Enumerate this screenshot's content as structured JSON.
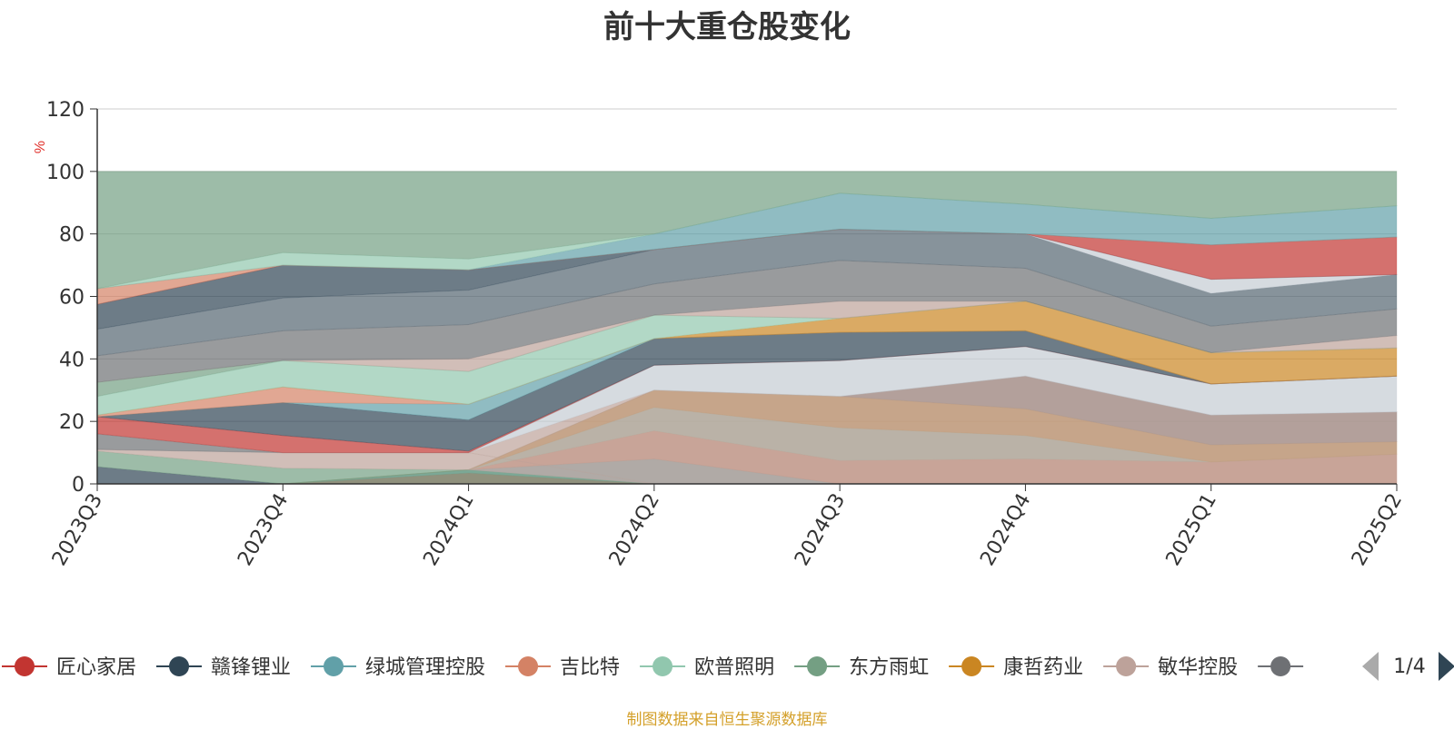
{
  "chart_data": {
    "type": "area",
    "title": "前十大重仓股变化",
    "ylabel": "%",
    "ylim": [
      0,
      120
    ],
    "yticks": [
      0,
      20,
      40,
      60,
      80,
      100,
      120
    ],
    "grid": true,
    "legend_position": "bottom",
    "categories": [
      "2023Q3",
      "2023Q4",
      "2024Q1",
      "2024Q2",
      "2024Q3",
      "2024Q4",
      "2025Q1",
      "2025Q2"
    ],
    "layers": [
      {
        "color": "#c23531",
        "base": [
          0,
          0,
          0,
          0,
          0,
          0,
          0,
          0
        ],
        "top": [
          0,
          0,
          3.5,
          0,
          0,
          0,
          0,
          0
        ]
      },
      {
        "color": "#61a0a8",
        "base": [
          0,
          0,
          3.5,
          0,
          0,
          0,
          0,
          0
        ],
        "top": [
          0,
          0,
          4.5,
          8,
          0,
          0,
          0,
          0
        ]
      },
      {
        "color": "#d48265",
        "base": [
          0,
          0,
          4.5,
          8,
          0,
          0,
          0,
          0
        ],
        "top": [
          0,
          0,
          4.5,
          17,
          7.5,
          8,
          7,
          9.5
        ]
      },
      {
        "color": "#91c7ae",
        "base": [
          0,
          0,
          4.5,
          17,
          7.5,
          8,
          7,
          9.5
        ],
        "top": [
          0,
          0,
          4.5,
          24.5,
          18,
          15.5,
          7,
          9.5
        ]
      },
      {
        "color": "#ca8622",
        "base": [
          0,
          0,
          4.5,
          24.5,
          18,
          15.5,
          7,
          9.5
        ],
        "top": [
          0,
          0,
          4.5,
          30,
          28,
          24,
          12.5,
          13.5
        ]
      },
      {
        "color": "#6e7074",
        "base": [
          0,
          0,
          4.5,
          30,
          28,
          24,
          12.5,
          13.5
        ],
        "top": [
          0,
          0,
          4.5,
          30,
          28,
          34.5,
          22,
          23
        ]
      },
      {
        "color": "#2f4554",
        "base": [
          0,
          0,
          0,
          0,
          0,
          0,
          0,
          0
        ],
        "top": [
          5.5,
          0,
          0,
          0,
          0,
          0,
          0,
          0
        ]
      },
      {
        "color": "#749f83",
        "base": [
          5.5,
          0,
          0,
          0,
          0,
          0,
          0,
          0
        ],
        "top": [
          10.5,
          5,
          4.5,
          0,
          0,
          0,
          0,
          0
        ]
      },
      {
        "color": "#bda29a",
        "base": [
          10.5,
          5,
          4.5,
          0,
          0,
          0,
          0,
          0
        ],
        "top": [
          11,
          10,
          10,
          0,
          0,
          0,
          0,
          0
        ]
      },
      {
        "color": "#bda29a",
        "base": [
          11,
          10,
          10,
          0,
          0,
          0,
          0,
          0
        ],
        "top": [
          11,
          10,
          10,
          30,
          28,
          34.5,
          22,
          23
        ]
      },
      {
        "color": "#c4ccd3",
        "base": [
          11,
          10,
          10,
          30,
          28,
          34.5,
          22,
          23
        ],
        "top": [
          11,
          10,
          10,
          38,
          39.5,
          44,
          32,
          34.5
        ]
      },
      {
        "color": "#6e7074",
        "base": [
          11,
          10,
          10,
          38,
          39.5,
          44,
          32,
          34.5
        ],
        "top": [
          16,
          10,
          10,
          38,
          39.5,
          44,
          32,
          34.5
        ]
      },
      {
        "color": "#c23531",
        "base": [
          16,
          10,
          10,
          38,
          39.5,
          44,
          32,
          34.5
        ],
        "top": [
          21.5,
          15.5,
          10.5,
          38,
          39.5,
          44,
          32,
          34.5
        ]
      },
      {
        "color": "#2f4554",
        "base": [
          21.5,
          15.5,
          10.5,
          38,
          39.5,
          44,
          32,
          34.5
        ],
        "top": [
          21.5,
          26,
          20.5,
          46.5,
          48.5,
          49,
          32,
          34.5
        ]
      },
      {
        "color": "#61a0a8",
        "base": [
          21.5,
          26,
          20.5,
          46.5,
          48.5,
          49,
          32,
          34.5
        ],
        "top": [
          21.5,
          26,
          25.5,
          46.5,
          48.5,
          49,
          32,
          34.5
        ]
      },
      {
        "color": "#d48265",
        "base": [
          21.5,
          26,
          25.5,
          46.5,
          48.5,
          49,
          32,
          34.5
        ],
        "top": [
          22,
          31,
          25.5,
          46.5,
          48.5,
          49,
          32,
          34.5
        ]
      },
      {
        "color": "#ca8622",
        "base": [
          22,
          31,
          25.5,
          46.5,
          48.5,
          49,
          32,
          34.5
        ],
        "top": [
          22,
          31,
          25.5,
          46.5,
          53,
          58.5,
          42,
          43.5
        ]
      },
      {
        "color": "#91c7ae",
        "base": [
          22,
          31,
          25.5,
          46.5,
          53,
          58.5,
          42,
          43.5
        ],
        "top": [
          28,
          39.5,
          36,
          54,
          53,
          58.5,
          42,
          43.5
        ]
      },
      {
        "color": "#749f83",
        "base": [
          28,
          39.5,
          36,
          54,
          53,
          58.5,
          42,
          43.5
        ],
        "top": [
          32.5,
          39.5,
          36,
          54,
          53,
          58.5,
          42,
          43.5
        ]
      },
      {
        "color": "#bda29a",
        "base": [
          32.5,
          39.5,
          36,
          54,
          53,
          58.5,
          42,
          43.5
        ],
        "top": [
          32.5,
          39.5,
          40,
          54,
          58.5,
          58.5,
          42,
          47.5
        ]
      },
      {
        "color": "#6e7074",
        "base": [
          32.5,
          39.5,
          40,
          54,
          58.5,
          58.5,
          42,
          47.5
        ],
        "top": [
          41,
          49,
          51,
          64,
          71.5,
          69,
          50.5,
          56
        ]
      },
      {
        "color": "#546570",
        "base": [
          41,
          49,
          51,
          64,
          71.5,
          69,
          50.5,
          56
        ],
        "top": [
          49.5,
          59.5,
          62,
          75,
          81.5,
          80,
          61,
          67
        ]
      },
      {
        "color": "#c4ccd3",
        "base": [
          49.5,
          59.5,
          62,
          75,
          81.5,
          80,
          61,
          67
        ],
        "top": [
          49.5,
          59.5,
          62,
          75,
          81.5,
          80,
          65.5,
          67
        ]
      },
      {
        "color": "#2f4554",
        "base": [
          49.5,
          59.5,
          62,
          75,
          81.5,
          80,
          65.5,
          67
        ],
        "top": [
          57.5,
          70,
          68.5,
          75,
          81.5,
          80,
          65.5,
          67
        ]
      },
      {
        "color": "#c23531",
        "base": [
          57.5,
          70,
          68.5,
          75,
          81.5,
          80,
          65.5,
          67
        ],
        "top": [
          57.5,
          70,
          68.5,
          75,
          81.5,
          80,
          76.5,
          79
        ]
      },
      {
        "color": "#d48265",
        "base": [
          57.5,
          70,
          68.5,
          75,
          81.5,
          80,
          76.5,
          79
        ],
        "top": [
          62.5,
          70,
          68.5,
          75,
          81.5,
          80,
          76.5,
          79
        ]
      },
      {
        "color": "#61a0a8",
        "base": [
          62.5,
          70,
          68.5,
          75,
          81.5,
          80,
          76.5,
          79
        ],
        "top": [
          62.5,
          70,
          68.5,
          80,
          93,
          89.5,
          85,
          89
        ]
      },
      {
        "color": "#91c7ae",
        "base": [
          62.5,
          70,
          68.5,
          80,
          93,
          89.5,
          85,
          89
        ],
        "top": [
          62.5,
          74,
          72,
          80,
          93,
          89.5,
          85,
          89
        ]
      },
      {
        "color": "#749f83",
        "base": [
          62.5,
          74,
          72,
          80,
          93,
          89.5,
          85,
          89
        ],
        "top": [
          100,
          100,
          100,
          100,
          100,
          100,
          100,
          100
        ]
      }
    ],
    "legend": [
      {
        "name": "匠心家居",
        "color": "#c23531"
      },
      {
        "name": "赣锋锂业",
        "color": "#2f4554"
      },
      {
        "name": "绿城管理控股",
        "color": "#61a0a8"
      },
      {
        "name": "吉比特",
        "color": "#d48265"
      },
      {
        "name": "欧普照明",
        "color": "#91c7ae"
      },
      {
        "name": "东方雨虹",
        "color": "#749f83"
      },
      {
        "name": "康哲药业",
        "color": "#ca8622"
      },
      {
        "name": "敏华控股",
        "color": "#bda29a"
      },
      {
        "name": "",
        "color": "#6e7074"
      }
    ],
    "legend_page": "1/4"
  },
  "source_note": "制图数据来自恒生聚源数据库"
}
